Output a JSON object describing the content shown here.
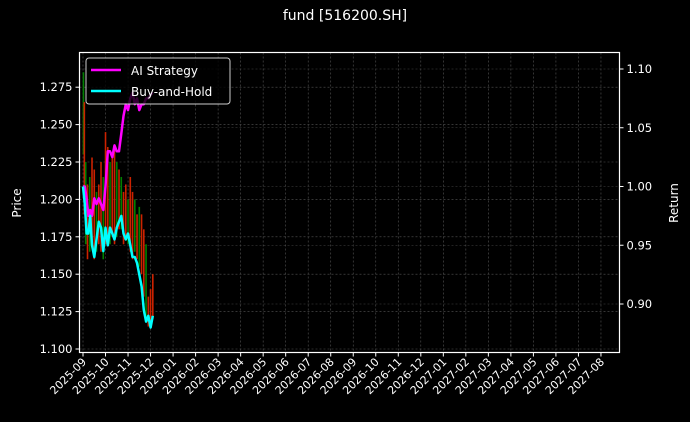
{
  "chart_data": {
    "type": "line",
    "title": "fund [516200.SH]",
    "xlabel": "",
    "ylabel": "Price",
    "ylabel_right": "Return",
    "ylim": [
      1.099,
      1.295
    ],
    "ylim_right": [
      0.862,
      1.113
    ],
    "grid": true,
    "legend_position": "upper left",
    "x_tick_labels": [
      "2025-09",
      "2025-10",
      "2025-11",
      "2025-12",
      "2026-01",
      "2026-02",
      "2026-03",
      "2026-04",
      "2026-05",
      "2026-06",
      "2026-07",
      "2026-08",
      "2026-09",
      "2026-10",
      "2026-11",
      "2026-12",
      "2027-01",
      "2027-02",
      "2027-03",
      "2027-04",
      "2027-05",
      "2027-06",
      "2027-07",
      "2027-08"
    ],
    "y_ticks_left": [
      "1.100",
      "1.125",
      "1.150",
      "1.175",
      "1.200",
      "1.225",
      "1.250",
      "1.275"
    ],
    "y_ticks_right": [
      "0.90",
      "0.95",
      "1.00",
      "1.05",
      "1.10"
    ],
    "series": [
      {
        "name": "AI Strategy",
        "axis": "right",
        "color": "#ff00ff",
        "x_month_offset": [
          0,
          0.08,
          0.16,
          0.24,
          0.32,
          0.4,
          0.5,
          0.6,
          0.7,
          0.8,
          0.9,
          1.0,
          1.1,
          1.2,
          1.3,
          1.4,
          1.5,
          1.6,
          1.7,
          1.8,
          1.9,
          2.0,
          2.1,
          2.2,
          2.3,
          2.4,
          2.5,
          2.6,
          2.7,
          2.8,
          2.9,
          3.0,
          3.1
        ],
        "values": [
          1.0,
          1.0,
          0.99,
          0.975,
          0.98,
          0.975,
          0.99,
          0.985,
          0.99,
          0.985,
          0.98,
          1.0,
          1.03,
          1.03,
          1.025,
          1.035,
          1.03,
          1.03,
          1.045,
          1.06,
          1.07,
          1.065,
          1.075,
          1.08,
          1.07,
          1.075,
          1.065,
          1.07,
          1.07,
          1.075,
          1.075,
          1.078,
          1.08
        ]
      },
      {
        "name": "Buy-and-Hold",
        "axis": "right",
        "color": "#00ffff",
        "x_month_offset": [
          0,
          0.08,
          0.16,
          0.24,
          0.32,
          0.4,
          0.5,
          0.6,
          0.7,
          0.8,
          0.9,
          1.0,
          1.1,
          1.2,
          1.3,
          1.4,
          1.5,
          1.6,
          1.7,
          1.8,
          1.9,
          2.0,
          2.1,
          2.2,
          2.3,
          2.4,
          2.5,
          2.6,
          2.7,
          2.8,
          2.9,
          3.0,
          3.1
        ],
        "values": [
          1.0,
          0.985,
          0.96,
          0.96,
          0.975,
          0.95,
          0.94,
          0.955,
          0.97,
          0.965,
          0.945,
          0.965,
          0.95,
          0.965,
          0.96,
          0.955,
          0.965,
          0.97,
          0.975,
          0.96,
          0.955,
          0.96,
          0.95,
          0.94,
          0.94,
          0.935,
          0.925,
          0.915,
          0.895,
          0.885,
          0.89,
          0.88,
          0.89
        ]
      }
    ],
    "price_candles_note": "red/green OHLC wicks behind lines, Sep-Dec 2025",
    "price_candles": [
      {
        "m": 0.02,
        "lo": 1.23,
        "hi": 1.285,
        "c": "#008000"
      },
      {
        "m": 0.06,
        "lo": 1.19,
        "hi": 1.265,
        "c": "#cc2200"
      },
      {
        "m": 0.12,
        "lo": 1.17,
        "hi": 1.225,
        "c": "#008000"
      },
      {
        "m": 0.2,
        "lo": 1.16,
        "hi": 1.21,
        "c": "#cc2200"
      },
      {
        "m": 0.3,
        "lo": 1.165,
        "hi": 1.215,
        "c": "#008000"
      },
      {
        "m": 0.4,
        "lo": 1.17,
        "hi": 1.228,
        "c": "#cc2200"
      },
      {
        "m": 0.5,
        "lo": 1.16,
        "hi": 1.22,
        "c": "#cc2200"
      },
      {
        "m": 0.6,
        "lo": 1.165,
        "hi": 1.205,
        "c": "#008000"
      },
      {
        "m": 0.7,
        "lo": 1.17,
        "hi": 1.21,
        "c": "#cc2200"
      },
      {
        "m": 0.8,
        "lo": 1.165,
        "hi": 1.225,
        "c": "#cc2200"
      },
      {
        "m": 0.9,
        "lo": 1.16,
        "hi": 1.215,
        "c": "#008000"
      },
      {
        "m": 1.0,
        "lo": 1.17,
        "hi": 1.245,
        "c": "#cc2200"
      },
      {
        "m": 1.1,
        "lo": 1.175,
        "hi": 1.235,
        "c": "#cc2200"
      },
      {
        "m": 1.2,
        "lo": 1.17,
        "hi": 1.225,
        "c": "#008000"
      },
      {
        "m": 1.3,
        "lo": 1.175,
        "hi": 1.23,
        "c": "#cc2200"
      },
      {
        "m": 1.4,
        "lo": 1.17,
        "hi": 1.235,
        "c": "#cc2200"
      },
      {
        "m": 1.5,
        "lo": 1.175,
        "hi": 1.225,
        "c": "#008000"
      },
      {
        "m": 1.6,
        "lo": 1.18,
        "hi": 1.22,
        "c": "#cc2200"
      },
      {
        "m": 1.7,
        "lo": 1.18,
        "hi": 1.215,
        "c": "#008000"
      },
      {
        "m": 1.8,
        "lo": 1.17,
        "hi": 1.205,
        "c": "#cc2200"
      },
      {
        "m": 1.9,
        "lo": 1.175,
        "hi": 1.21,
        "c": "#cc2200"
      },
      {
        "m": 2.0,
        "lo": 1.17,
        "hi": 1.2,
        "c": "#008000"
      },
      {
        "m": 2.1,
        "lo": 1.165,
        "hi": 1.215,
        "c": "#cc2200"
      },
      {
        "m": 2.2,
        "lo": 1.16,
        "hi": 1.205,
        "c": "#cc2200"
      },
      {
        "m": 2.3,
        "lo": 1.165,
        "hi": 1.2,
        "c": "#008000"
      },
      {
        "m": 2.4,
        "lo": 1.16,
        "hi": 1.19,
        "c": "#cc2200"
      },
      {
        "m": 2.5,
        "lo": 1.155,
        "hi": 1.195,
        "c": "#008000"
      },
      {
        "m": 2.6,
        "lo": 1.15,
        "hi": 1.19,
        "c": "#cc2200"
      },
      {
        "m": 2.7,
        "lo": 1.135,
        "hi": 1.18,
        "c": "#cc2200"
      },
      {
        "m": 2.8,
        "lo": 1.12,
        "hi": 1.17,
        "c": "#008000"
      },
      {
        "m": 2.9,
        "lo": 1.115,
        "hi": 1.135,
        "c": "#cc2200"
      },
      {
        "m": 3.0,
        "lo": 1.115,
        "hi": 1.14,
        "c": "#cc2200"
      },
      {
        "m": 3.1,
        "lo": 1.12,
        "hi": 1.15,
        "c": "#cc2200"
      }
    ]
  }
}
